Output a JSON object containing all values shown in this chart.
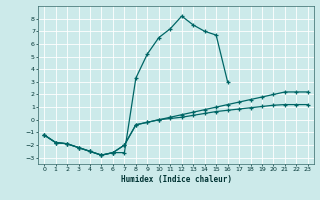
{
  "xlabel": "Humidex (Indice chaleur)",
  "background_color": "#cceaea",
  "grid_color": "#ffffff",
  "line_color": "#006666",
  "xlim": [
    -0.5,
    23.5
  ],
  "ylim": [
    -3.5,
    9.0
  ],
  "xticks": [
    0,
    1,
    2,
    3,
    4,
    5,
    6,
    7,
    8,
    9,
    10,
    11,
    12,
    13,
    14,
    15,
    16,
    17,
    18,
    19,
    20,
    21,
    22,
    23
  ],
  "yticks": [
    -3,
    -2,
    -1,
    0,
    1,
    2,
    3,
    4,
    5,
    6,
    7,
    8
  ],
  "line1_x": [
    0,
    1,
    2,
    3,
    4,
    5,
    6,
    7,
    8,
    9,
    10,
    11,
    12,
    13,
    14,
    15,
    16
  ],
  "line1_y": [
    -1.2,
    -1.8,
    -1.9,
    -2.2,
    -2.5,
    -2.8,
    -2.6,
    -2.6,
    3.3,
    5.2,
    6.5,
    7.2,
    8.2,
    7.5,
    7.0,
    6.7,
    3.0
  ],
  "line2_x": [
    0,
    1,
    2,
    3,
    4,
    5,
    6,
    7,
    8,
    9,
    10,
    11,
    12,
    13,
    14,
    15,
    16,
    17,
    18,
    19,
    20,
    21,
    22,
    23
  ],
  "line2_y": [
    -1.2,
    -1.8,
    -1.9,
    -2.2,
    -2.5,
    -2.8,
    -2.6,
    -2.0,
    -0.4,
    -0.2,
    0.0,
    0.2,
    0.4,
    0.6,
    0.8,
    1.0,
    1.2,
    1.4,
    1.6,
    1.8,
    2.0,
    2.2,
    2.2,
    2.2
  ],
  "line3_x": [
    0,
    1,
    2,
    3,
    4,
    5,
    6,
    7,
    8,
    9,
    10,
    11,
    12,
    13,
    14,
    15,
    16,
    17,
    18,
    19,
    20,
    21,
    22,
    23
  ],
  "line3_y": [
    -1.2,
    -1.8,
    -1.9,
    -2.2,
    -2.5,
    -2.8,
    -2.6,
    -2.0,
    -0.4,
    -0.2,
    0.0,
    0.1,
    0.2,
    0.35,
    0.5,
    0.65,
    0.75,
    0.85,
    0.95,
    1.05,
    1.15,
    1.2,
    1.2,
    1.2
  ]
}
